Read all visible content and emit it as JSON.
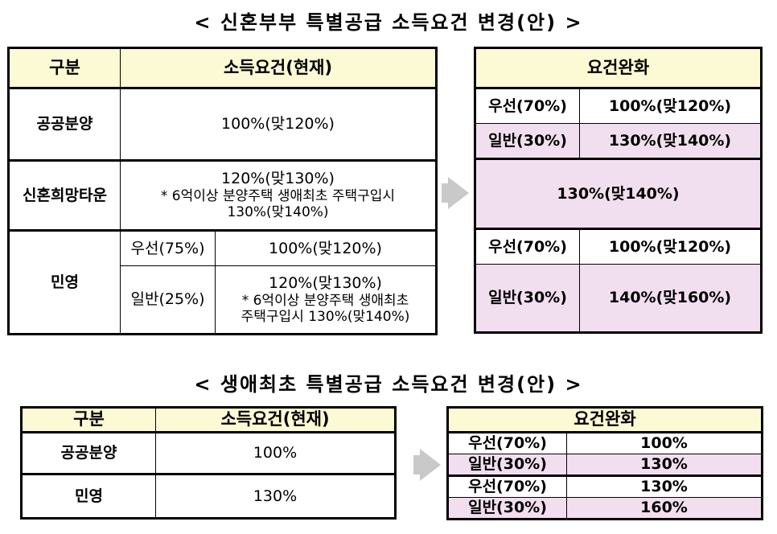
{
  "section1": {
    "title": "< 신혼부부 특별공급 소득요건 변경(안) >",
    "left": {
      "header": {
        "col1": "구분",
        "col2": "소득요건(현재)"
      },
      "rows": {
        "public_label": "공공분양",
        "public_value": "100%(맞120%)",
        "town_label": "신혼희망타운",
        "town_line1": "120%(맞130%)",
        "town_line2": "* 6억이상 분양주택 생애최초 주택구입시",
        "town_line3": "130%(맞140%)",
        "private_label": "민영",
        "private_priority_label": "우선(75%)",
        "private_priority_value": "100%(맞120%)",
        "private_general_label": "일반(25%)",
        "private_general_line1": "120%(맞130%)",
        "private_general_line2": "* 6억이상 분양주택 생애최초",
        "private_general_line3": "주택구입시 130%(맞140%)"
      }
    },
    "right": {
      "header": "요건완화",
      "rows": {
        "public_priority_label": "우선(70%)",
        "public_priority_value": "100%(맞120%)",
        "public_general_label": "일반(30%)",
        "public_general_value": "130%(맞140%)",
        "town_value": "130%(맞140%)",
        "private_priority_label": "우선(70%)",
        "private_priority_value": "100%(맞120%)",
        "private_general_label": "일반(30%)",
        "private_general_value": "140%(맞160%)"
      }
    }
  },
  "section2": {
    "title": "< 생애최초 특별공급 소득요건 변경(안) >",
    "left": {
      "header": {
        "col1": "구분",
        "col2": "소득요건(현재)"
      },
      "rows": {
        "public_label": "공공분양",
        "public_value": "100%",
        "private_label": "민영",
        "private_value": "130%"
      }
    },
    "right": {
      "header": "요건완화",
      "rows": {
        "r1_label": "우선(70%)",
        "r1_value": "100%",
        "r2_label": "일반(30%)",
        "r2_value": "130%",
        "r3_label": "우선(70%)",
        "r3_value": "130%",
        "r4_label": "일반(30%)",
        "r4_value": "160%"
      }
    }
  },
  "colors": {
    "header_bg": "#fcf9d5",
    "highlight_bg": "#f1dfef",
    "arrow": "#c9c9c9"
  },
  "icons": [
    "arrow-right-icon"
  ]
}
